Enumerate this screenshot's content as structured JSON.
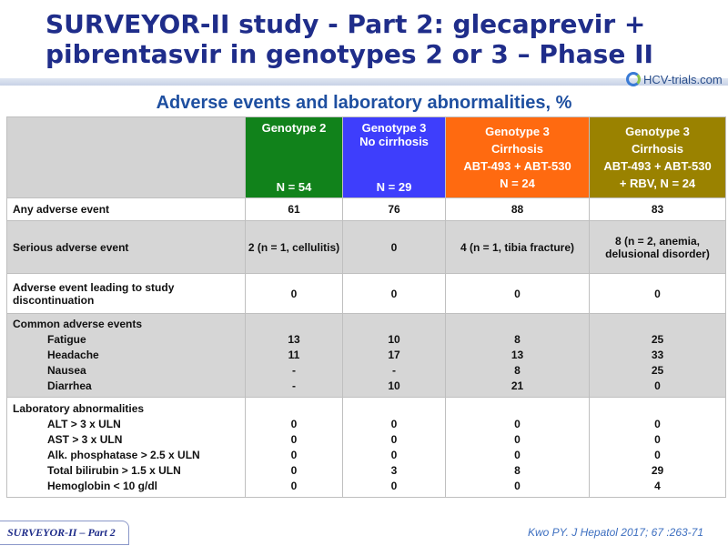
{
  "slide": {
    "title": "SURVEYOR-II study - Part 2: glecaprevir + pibrentasvir in genotypes 2 or 3 – Phase II",
    "subtitle": "Adverse events and laboratory abnormalities, %",
    "logo_text": "HCV-trials.com",
    "footer_tag": "SURVEYOR-II – Part 2",
    "citation": "Kwo PY. J Hepatol 2017; 67 :263-71"
  },
  "colors": {
    "genotype2": "#11821b",
    "genotype3_no_cirrhosis": "#3e3efc",
    "genotype3_cirrhosis": "#ff6a10",
    "genotype3_cirrhosis_rbv": "#9a8200",
    "title": "#1f2d8a"
  },
  "table": {
    "columns": [
      {
        "line1": "Genotype 2",
        "line2": "",
        "line3": "",
        "n": "N = 54"
      },
      {
        "line1": "Genotype 3",
        "line2": "No cirrhosis",
        "line3": "",
        "n": "N = 29"
      },
      {
        "line1": "Genotype 3",
        "line2": "Cirrhosis",
        "line3": "ABT-493 + ABT-530",
        "n": "N = 24"
      },
      {
        "line1": "Genotype 3",
        "line2": "Cirrhosis",
        "line3": "ABT-493 + ABT-530",
        "n": "+ RBV, N = 24"
      }
    ],
    "any_ae": {
      "label": "Any adverse event",
      "values": [
        "61",
        "76",
        "88",
        "83"
      ]
    },
    "serious_ae": {
      "label": "Serious adverse event",
      "values": [
        "2 (n = 1, cellulitis)",
        "0",
        "4 (n = 1, tibia fracture)",
        "8 (n = 2, anemia, delusional disorder)"
      ]
    },
    "discontinuation": {
      "label": "Adverse event leading to study discontinuation",
      "values": [
        "0",
        "0",
        "0",
        "0"
      ]
    },
    "common": {
      "label": "Common adverse events",
      "items": [
        {
          "label": "Fatigue",
          "values": [
            "13",
            "10",
            "8",
            "25"
          ]
        },
        {
          "label": "Headache",
          "values": [
            "11",
            "17",
            "13",
            "33"
          ]
        },
        {
          "label": "Nausea",
          "values": [
            "-",
            "-",
            "8",
            "25"
          ]
        },
        {
          "label": "Diarrhea",
          "values": [
            "-",
            "10",
            "21",
            "0"
          ]
        }
      ]
    },
    "lab": {
      "label": "Laboratory abnormalities",
      "items": [
        {
          "label": "ALT > 3 x ULN",
          "values": [
            "0",
            "0",
            "0",
            "0"
          ]
        },
        {
          "label": "AST > 3 x ULN",
          "values": [
            "0",
            "0",
            "0",
            "0"
          ]
        },
        {
          "label": "Alk. phosphatase  > 2.5 x ULN",
          "values": [
            "0",
            "0",
            "0",
            "0"
          ]
        },
        {
          "label": "Total bilirubin  > 1.5 x ULN",
          "values": [
            "0",
            "3",
            "8",
            "29"
          ]
        },
        {
          "label": "Hemoglobin  < 10 g/dl",
          "values": [
            "0",
            "0",
            "0",
            "4"
          ]
        }
      ]
    }
  }
}
